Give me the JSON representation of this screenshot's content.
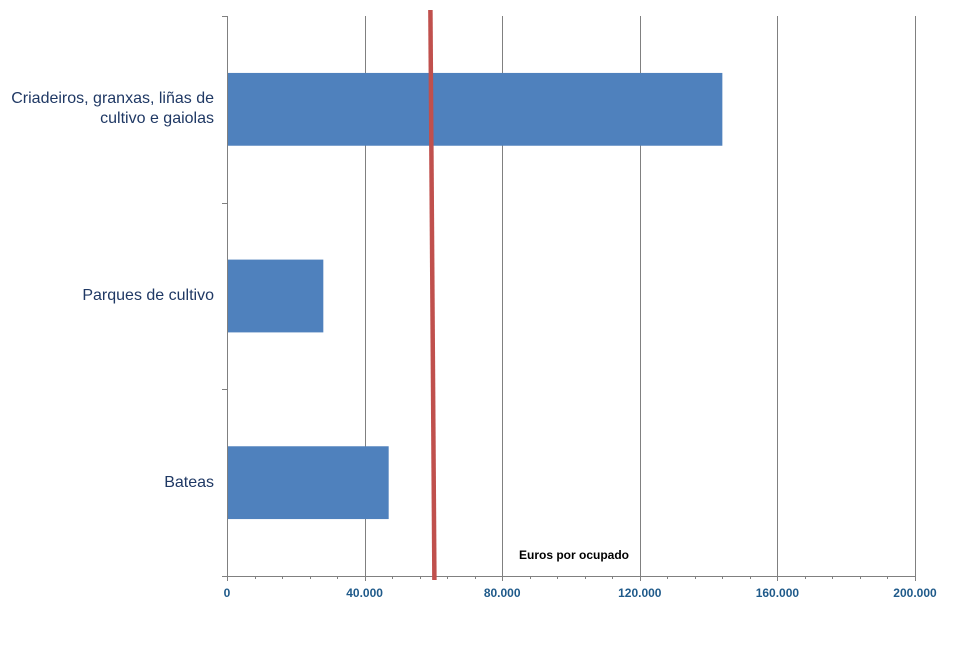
{
  "chart_data": {
    "type": "bar",
    "orientation": "horizontal",
    "categories": [
      "Criadeiros, granxas, liñas de cultivo e gaiolas",
      "Parques de cultivo",
      "Bateas"
    ],
    "values": [
      144000,
      28000,
      47000
    ],
    "xlabel": "Euros por ocupado",
    "xlim": [
      0,
      200000
    ],
    "xticks": [
      0,
      40000,
      80000,
      120000,
      160000,
      200000
    ],
    "xtick_labels": [
      "0",
      "40.000",
      "80.000",
      "120.000",
      "160.000",
      "200.000"
    ],
    "grid": "vertical",
    "reference_line": {
      "value": 60000
    },
    "colors": {
      "bar": "#4F81BD",
      "reference": "#C0504D",
      "grid": "#808080",
      "axis_text": "#1F5A8A",
      "category_text": "#1F3864"
    }
  }
}
